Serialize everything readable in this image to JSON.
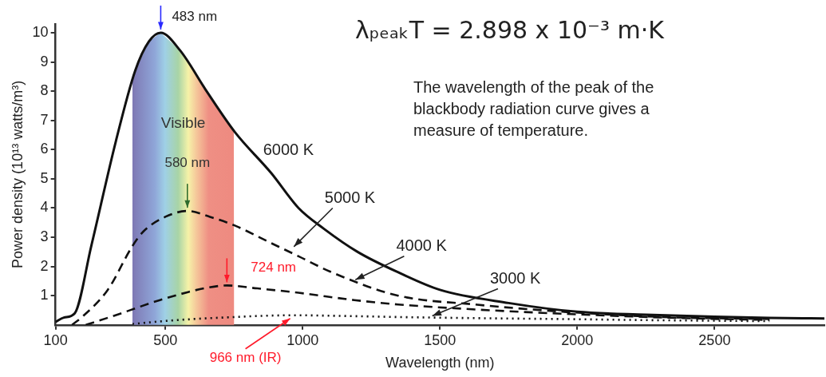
{
  "chart_data": {
    "type": "line",
    "xlabel": "Wavelength (nm)",
    "ylabel": "Power density (10¹³ watts/m³)",
    "xlim": [
      100,
      2900
    ],
    "xticks": [
      100,
      500,
      1000,
      1500,
      2000,
      2500
    ],
    "ylim": [
      0,
      10.3
    ],
    "yticks": [
      1,
      2,
      3,
      4,
      5,
      6,
      7,
      8,
      9,
      10
    ],
    "grid": false,
    "series": [
      {
        "name": "6000 K",
        "color": "#111111",
        "line_style": "solid",
        "x": [
          100,
          130,
          170,
          230,
          320,
          390,
          440,
          483,
          553,
          650,
          753,
          885,
          985,
          1076,
          1200,
          1348,
          1500,
          1750,
          2000,
          2250,
          2500,
          2700,
          2900
        ],
        "values": [
          0.1,
          0.25,
          0.4,
          2.7,
          6.3,
          8.7,
          9.7,
          10,
          9.4,
          8.0,
          6.6,
          5.2,
          4.0,
          3.3,
          2.5,
          1.8,
          1.2,
          0.75,
          0.45,
          0.35,
          0.28,
          0.24,
          0.22
        ]
      },
      {
        "name": "5000 K",
        "color": "#111111",
        "line_style": "dashed",
        "x": [
          160,
          200,
          290,
          380,
          420,
          500,
          580,
          662,
          753,
          885,
          985,
          1106,
          1348,
          1626,
          1952,
          2315,
          2700
        ],
        "values": [
          0,
          0.3,
          1.2,
          2.7,
          3.2,
          3.7,
          3.9,
          3.7,
          3.4,
          2.8,
          2.35,
          1.8,
          1.0,
          0.7,
          0.45,
          0.27,
          0.2
        ]
      },
      {
        "name": "4000 K",
        "color": "#111111",
        "line_style": "dashed",
        "x": [
          210,
          340,
          400,
          480,
          585,
          650,
          724,
          835,
          985,
          1188,
          1348,
          1590,
          1952,
          2435,
          2700
        ],
        "values": [
          0,
          0.4,
          0.6,
          0.85,
          1.13,
          1.27,
          1.35,
          1.25,
          1.1,
          0.85,
          0.7,
          0.55,
          0.38,
          0.22,
          0.17
        ]
      },
      {
        "name": "3000 K",
        "color": "#111111",
        "line_style": "dotted",
        "x": [
          380,
          480,
          600,
          753,
          850,
          966,
          1188,
          1348,
          1650,
          1952,
          2300,
          2700
        ],
        "values": [
          0.03,
          0.12,
          0.2,
          0.27,
          0.31,
          0.33,
          0.3,
          0.27,
          0.23,
          0.2,
          0.16,
          0.13
        ]
      }
    ],
    "bands": [
      {
        "axis": "x",
        "from": 380,
        "to": 750,
        "label": "Visible"
      }
    ],
    "annotations": [
      {
        "text": "483 nm",
        "x": 483,
        "y": 10
      },
      {
        "text": "580 nm",
        "x": 580,
        "y": 3.9
      },
      {
        "text": "724 nm",
        "x": 724,
        "y": 1.35
      },
      {
        "text": "966 nm (IR)",
        "x": 966,
        "y": 0.33
      },
      "λₚₑₐₖT = 2.898 x 10⁻³ m·K",
      "The wavelength of the peak of the blackbody radiation curve gives a measure of temperature."
    ]
  }
}
